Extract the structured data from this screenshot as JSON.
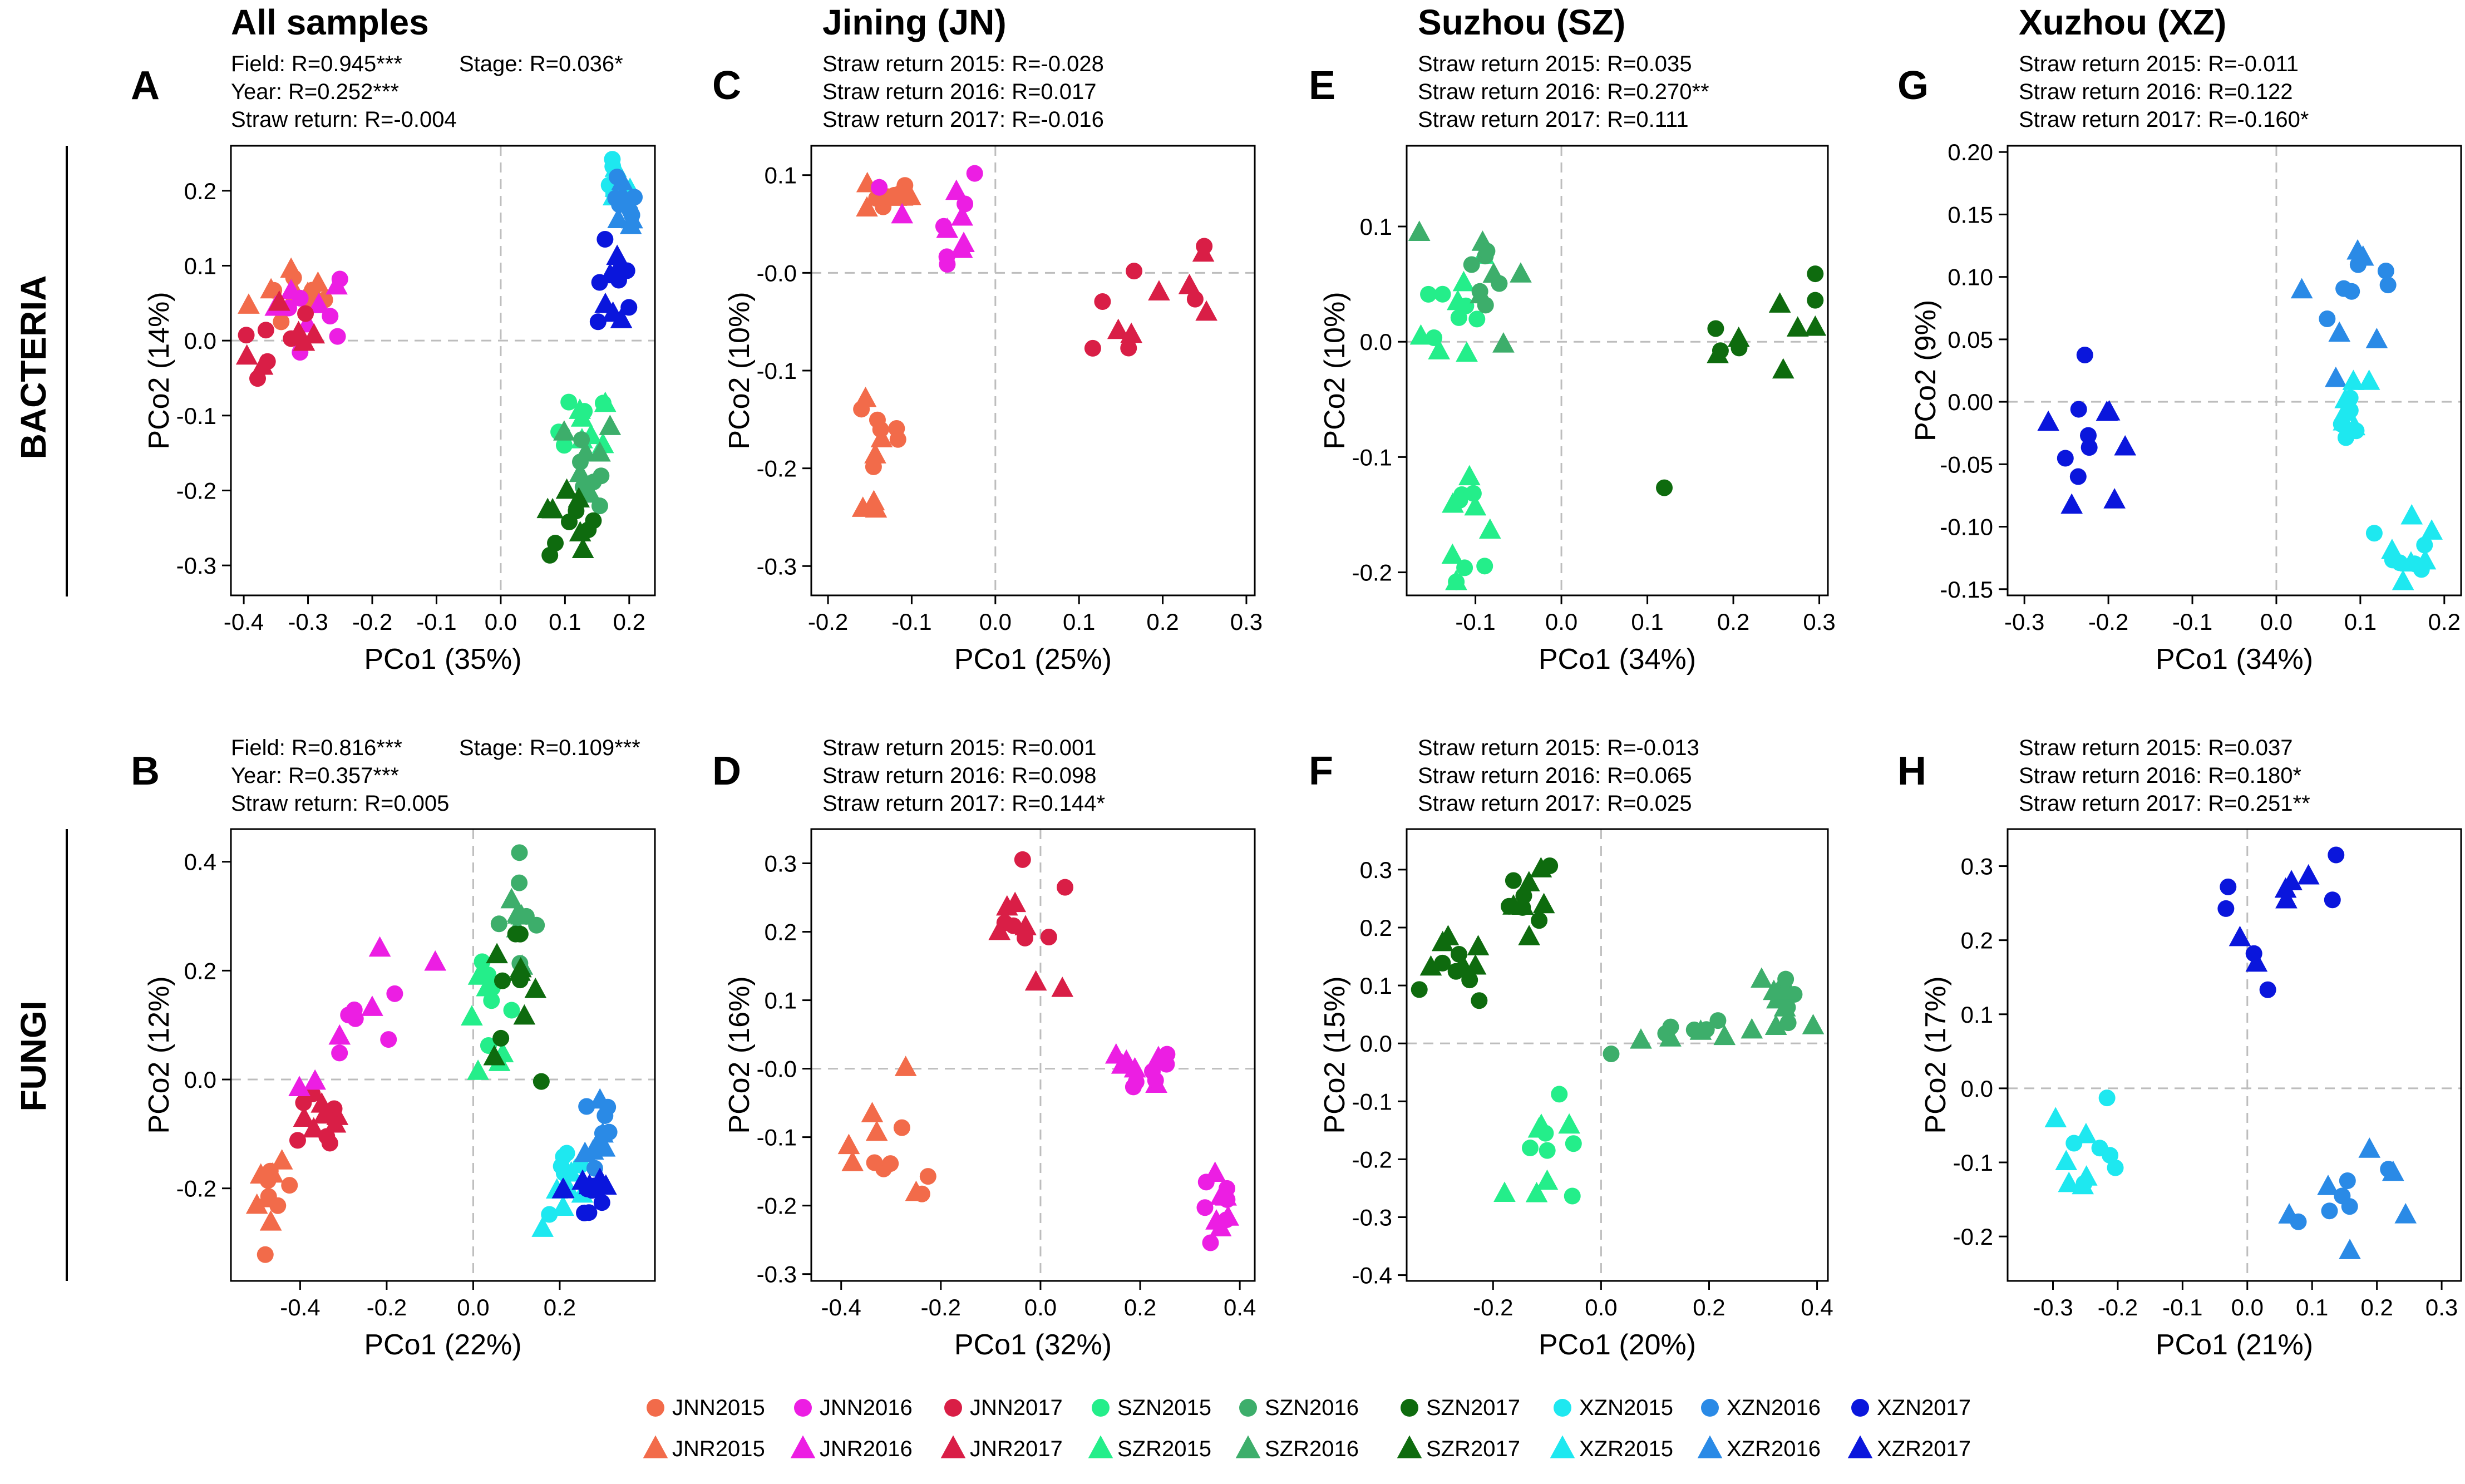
{
  "columns": [
    {
      "key": "all",
      "title": "All samples"
    },
    {
      "key": "jn",
      "title": "Jining (JN)"
    },
    {
      "key": "sz",
      "title": "Suzhou (SZ)"
    },
    {
      "key": "xz",
      "title": "Xuzhou (XZ)"
    }
  ],
  "rows": [
    {
      "key": "bacteria",
      "label": "BACTERIA"
    },
    {
      "key": "fungi",
      "label": "FUNGI"
    }
  ],
  "colors": {
    "JN2015": "#f26b4a",
    "JN2016": "#ec1ee3",
    "JN2017": "#d91e46",
    "SZ2015": "#24ee8a",
    "SZ2016": "#3dae6b",
    "SZ2017": "#0e6b0e",
    "XZ2015": "#1ee8f0",
    "XZ2016": "#2a8ae6",
    "XZ2017": "#0a16dc"
  },
  "legend": {
    "row1": [
      {
        "label": "JNN2015",
        "group": "JN2015",
        "shape": "circle"
      },
      {
        "label": "JNN2016",
        "group": "JN2016",
        "shape": "circle"
      },
      {
        "label": "JNN2017",
        "group": "JN2017",
        "shape": "circle"
      },
      {
        "label": "SZN2015",
        "group": "SZ2015",
        "shape": "circle"
      },
      {
        "label": "SZN2016",
        "group": "SZ2016",
        "shape": "circle"
      },
      {
        "label": "SZN2017",
        "group": "SZ2017",
        "shape": "circle"
      },
      {
        "label": "XZN2015",
        "group": "XZ2015",
        "shape": "circle"
      },
      {
        "label": "XZN2016",
        "group": "XZ2016",
        "shape": "circle"
      },
      {
        "label": "XZN2017",
        "group": "XZ2017",
        "shape": "circle"
      }
    ],
    "row2": [
      {
        "label": "JNR2015",
        "group": "JN2015",
        "shape": "triangle"
      },
      {
        "label": "JNR2016",
        "group": "JN2016",
        "shape": "triangle"
      },
      {
        "label": "JNR2017",
        "group": "JN2017",
        "shape": "triangle"
      },
      {
        "label": "SZR2015",
        "group": "SZ2015",
        "shape": "triangle"
      },
      {
        "label": "SZR2016",
        "group": "SZ2016",
        "shape": "triangle"
      },
      {
        "label": "SZR2017",
        "group": "SZ2017",
        "shape": "triangle"
      },
      {
        "label": "XZR2015",
        "group": "XZ2015",
        "shape": "triangle"
      },
      {
        "label": "XZR2016",
        "group": "XZ2016",
        "shape": "triangle"
      },
      {
        "label": "XZR2017",
        "group": "XZ2017",
        "shape": "triangle"
      }
    ]
  },
  "chart_data": [
    {
      "id": "A",
      "type": "scatter",
      "domain": "bacteria",
      "column": "all",
      "xlabel": "PCo1 (35%)",
      "ylabel": "PCo2 (14%)",
      "xlim": [
        -0.42,
        0.24
      ],
      "ylim": [
        -0.34,
        0.26
      ],
      "xticks": [
        -0.4,
        -0.3,
        -0.2,
        -0.1,
        0.0,
        0.1,
        0.2
      ],
      "xtick_labels": [
        "-0.4",
        "-0.3",
        "-0.2",
        "-0.1",
        "0.0",
        "0.1",
        "0.2"
      ],
      "yticks": [
        -0.3,
        -0.2,
        -0.1,
        0.0,
        0.1,
        0.2
      ],
      "ytick_labels": [
        "-0.3",
        "-0.2",
        "-0.1",
        "0.0",
        "0.1",
        "0.2"
      ],
      "stats": [
        "Field: R=0.945***",
        "Stage: R=0.036*",
        "Year: R=0.252***",
        "Straw return: R=-0.004"
      ],
      "clusters": [
        {
          "group": "JN2015",
          "cx": -0.31,
          "cy": 0.06,
          "sx": 0.04,
          "sy": 0.025,
          "rot": 0
        },
        {
          "group": "JN2016",
          "cx": -0.3,
          "cy": 0.05,
          "sx": 0.04,
          "sy": 0.025,
          "rot": 0
        },
        {
          "group": "JN2017",
          "cx": -0.33,
          "cy": -0.01,
          "sx": 0.04,
          "sy": 0.03,
          "rot": 0
        },
        {
          "group": "SZ2015",
          "cx": 0.13,
          "cy": -0.12,
          "sx": 0.02,
          "sy": 0.025,
          "rot": 0
        },
        {
          "group": "SZ2016",
          "cx": 0.14,
          "cy": -0.16,
          "sx": 0.02,
          "sy": 0.03,
          "rot": 0
        },
        {
          "group": "SZ2017",
          "cx": 0.1,
          "cy": -0.25,
          "sx": 0.025,
          "sy": 0.03,
          "rot": 0
        },
        {
          "group": "XZ2015",
          "cx": 0.18,
          "cy": 0.21,
          "sx": 0.01,
          "sy": 0.015,
          "rot": 0
        },
        {
          "group": "XZ2016",
          "cx": 0.19,
          "cy": 0.17,
          "sx": 0.012,
          "sy": 0.025,
          "rot": 0
        },
        {
          "group": "XZ2017",
          "cx": 0.18,
          "cy": 0.07,
          "sx": 0.015,
          "sy": 0.03,
          "rot": 0
        }
      ]
    },
    {
      "id": "C",
      "type": "scatter",
      "domain": "bacteria",
      "column": "jn",
      "xlabel": "PCo1 (25%)",
      "ylabel": "PCo2 (10%)",
      "xlim": [
        -0.22,
        0.31
      ],
      "ylim": [
        -0.33,
        0.13
      ],
      "xticks": [
        -0.2,
        -0.1,
        0.0,
        0.1,
        0.2,
        0.3
      ],
      "xtick_labels": [
        "-0.2",
        "-0.1",
        "0.0",
        "0.1",
        "0.2",
        "0.3"
      ],
      "yticks": [
        -0.3,
        -0.2,
        -0.1,
        0.0,
        0.1
      ],
      "ytick_labels": [
        "-0.3",
        "-0.2",
        "-0.1",
        "-0.0",
        "0.1"
      ],
      "stats": [
        "Straw return 2015: R=-0.028",
        "Straw return 2016: R=0.017",
        "Straw return 2017: R=-0.016"
      ],
      "clusters": [
        {
          "group": "JN2015",
          "cx": -0.13,
          "cy": 0.08,
          "sx": 0.015,
          "sy": 0.01,
          "rot": 0
        },
        {
          "group": "JN2016",
          "cx": -0.07,
          "cy": 0.05,
          "sx": 0.03,
          "sy": 0.035,
          "rot": 0
        },
        {
          "group": "JN2017",
          "cx": 0.2,
          "cy": -0.02,
          "sx": 0.035,
          "sy": 0.06,
          "rot": -1.0
        },
        {
          "group": "JN2015",
          "cx": -0.14,
          "cy": -0.18,
          "sx": 0.02,
          "sy": 0.05,
          "rot": 0
        }
      ]
    },
    {
      "id": "E",
      "type": "scatter",
      "domain": "bacteria",
      "column": "sz",
      "xlabel": "PCo1 (34%)",
      "ylabel": "PCo2 (10%)",
      "xlim": [
        -0.18,
        0.31
      ],
      "ylim": [
        -0.22,
        0.17
      ],
      "xticks": [
        -0.1,
        0.0,
        0.1,
        0.2,
        0.3
      ],
      "xtick_labels": [
        "-0.1",
        "0.0",
        "0.1",
        "0.2",
        "0.3"
      ],
      "yticks": [
        -0.2,
        -0.1,
        0.0,
        0.1
      ],
      "ytick_labels": [
        "-0.2",
        "-0.1",
        "0.0",
        "0.1"
      ],
      "stats": [
        "Straw return 2015: R=0.035",
        "Straw return 2016: R=0.270**",
        "Straw return 2017: R=0.111"
      ],
      "clusters": [
        {
          "group": "SZ2015",
          "cx": -0.12,
          "cy": 0.03,
          "sx": 0.02,
          "sy": 0.03,
          "rot": 0
        },
        {
          "group": "SZ2016",
          "cx": -0.09,
          "cy": 0.06,
          "sx": 0.025,
          "sy": 0.03,
          "rot": 0
        },
        {
          "group": "SZ2015",
          "cx": -0.11,
          "cy": -0.15,
          "sx": 0.012,
          "sy": 0.035,
          "rot": 0
        },
        {
          "group": "SZ2017",
          "cx": 0.22,
          "cy": 0.0,
          "sx": 0.03,
          "sy": 0.07,
          "rot": -1.2
        }
      ]
    },
    {
      "id": "G",
      "type": "scatter",
      "domain": "bacteria",
      "column": "xz",
      "xlabel": "PCo1 (34%)",
      "ylabel": "PCo2 (9%)",
      "xlim": [
        -0.32,
        0.22
      ],
      "ylim": [
        -0.155,
        0.205
      ],
      "xticks": [
        -0.3,
        -0.2,
        -0.1,
        0.0,
        0.1,
        0.2
      ],
      "xtick_labels": [
        "-0.3",
        "-0.2",
        "-0.1",
        "0.0",
        "0.1",
        "0.2"
      ],
      "yticks": [
        -0.15,
        -0.1,
        -0.05,
        0.0,
        0.05,
        0.1,
        0.15,
        0.2
      ],
      "ytick_labels": [
        "-0.15",
        "-0.10",
        "-0.05",
        "0.00",
        "0.05",
        "0.10",
        "0.15",
        "0.20"
      ],
      "stats": [
        "Straw return 2015: R=-0.011",
        "Straw return 2016: R=0.122",
        "Straw return 2017: R=-0.160*"
      ],
      "clusters": [
        {
          "group": "XZ2017",
          "cx": -0.22,
          "cy": -0.03,
          "sx": 0.03,
          "sy": 0.035,
          "rot": -0.8
        },
        {
          "group": "XZ2016",
          "cx": 0.08,
          "cy": 0.09,
          "sx": 0.02,
          "sy": 0.04,
          "rot": -0.6
        },
        {
          "group": "XZ2015",
          "cx": 0.09,
          "cy": -0.01,
          "sx": 0.01,
          "sy": 0.015,
          "rot": 0
        },
        {
          "group": "XZ2015",
          "cx": 0.16,
          "cy": -0.11,
          "sx": 0.015,
          "sy": 0.02,
          "rot": 0
        }
      ]
    },
    {
      "id": "B",
      "type": "scatter",
      "domain": "fungi",
      "column": "all",
      "xlabel": "PCo1 (22%)",
      "ylabel": "PCo2 (12%)",
      "xlim": [
        -0.56,
        0.42
      ],
      "ylim": [
        -0.37,
        0.46
      ],
      "xticks": [
        -0.4,
        -0.2,
        0.0,
        0.2
      ],
      "xtick_labels": [
        "-0.4",
        "-0.2",
        "0.0",
        "0.2"
      ],
      "yticks": [
        -0.2,
        0.0,
        0.2,
        0.4
      ],
      "ytick_labels": [
        "-0.2",
        "0.0",
        "0.2",
        "0.4"
      ],
      "stats": [
        "Field: R=0.816***",
        "Stage: R=0.109***",
        "Year: R=0.357***",
        "Straw return: R=0.005"
      ],
      "clusters": [
        {
          "group": "JN2015",
          "cx": -0.46,
          "cy": -0.22,
          "sx": 0.02,
          "sy": 0.03,
          "rot": 0
        },
        {
          "group": "JN2017",
          "cx": -0.36,
          "cy": -0.07,
          "sx": 0.04,
          "sy": 0.05,
          "rot": -0.8
        },
        {
          "group": "JN2016",
          "cx": -0.24,
          "cy": 0.12,
          "sx": 0.04,
          "sy": 0.08,
          "rot": -0.8
        },
        {
          "group": "SZ2015",
          "cx": 0.04,
          "cy": 0.12,
          "sx": 0.03,
          "sy": 0.05,
          "rot": 0
        },
        {
          "group": "SZ2016",
          "cx": 0.1,
          "cy": 0.3,
          "sx": 0.025,
          "sy": 0.05,
          "rot": 0
        },
        {
          "group": "SZ2017",
          "cx": 0.09,
          "cy": 0.15,
          "sx": 0.03,
          "sy": 0.06,
          "rot": 0
        },
        {
          "group": "XZ2015",
          "cx": 0.22,
          "cy": -0.2,
          "sx": 0.03,
          "sy": 0.04,
          "rot": 0
        },
        {
          "group": "XZ2016",
          "cx": 0.29,
          "cy": -0.1,
          "sx": 0.02,
          "sy": 0.06,
          "rot": 0
        },
        {
          "group": "XZ2017",
          "cx": 0.27,
          "cy": -0.2,
          "sx": 0.03,
          "sy": 0.04,
          "rot": 0
        }
      ]
    },
    {
      "id": "D",
      "type": "scatter",
      "domain": "fungi",
      "column": "jn",
      "xlabel": "PCo1 (32%)",
      "ylabel": "PCo2 (16%)",
      "xlim": [
        -0.46,
        0.43
      ],
      "ylim": [
        -0.31,
        0.35
      ],
      "xticks": [
        -0.4,
        -0.2,
        0.0,
        0.2,
        0.4
      ],
      "xtick_labels": [
        "-0.4",
        "-0.2",
        "0.0",
        "0.2",
        "0.4"
      ],
      "yticks": [
        -0.3,
        -0.2,
        -0.1,
        0.0,
        0.1,
        0.2,
        0.3
      ],
      "ytick_labels": [
        "-0.3",
        "-0.2",
        "-0.1",
        "-0.0",
        "0.1",
        "0.2",
        "0.3"
      ],
      "stats": [
        "Straw return 2015: R=0.001",
        "Straw return 2016: R=0.098",
        "Straw return 2017: R=0.144*"
      ],
      "clusters": [
        {
          "group": "JN2015",
          "cx": -0.3,
          "cy": -0.13,
          "sx": 0.07,
          "sy": 0.04,
          "rot": -0.45
        },
        {
          "group": "JN2017",
          "cx": -0.02,
          "cy": 0.2,
          "sx": 0.07,
          "sy": 0.05,
          "rot": 0
        },
        {
          "group": "JN2016",
          "cx": 0.19,
          "cy": -0.01,
          "sx": 0.04,
          "sy": 0.02,
          "rot": 0
        },
        {
          "group": "JN2016",
          "cx": 0.36,
          "cy": -0.21,
          "sx": 0.02,
          "sy": 0.03,
          "rot": 0
        }
      ]
    },
    {
      "id": "F",
      "type": "scatter",
      "domain": "fungi",
      "column": "sz",
      "xlabel": "PCo1 (20%)",
      "ylabel": "PCo2 (15%)",
      "xlim": [
        -0.36,
        0.42
      ],
      "ylim": [
        -0.41,
        0.37
      ],
      "xticks": [
        -0.2,
        0.0,
        0.2,
        0.4
      ],
      "xtick_labels": [
        "-0.2",
        "0.0",
        "0.2",
        "0.4"
      ],
      "yticks": [
        -0.4,
        -0.3,
        -0.2,
        -0.1,
        0.0,
        0.1,
        0.2,
        0.3
      ],
      "ytick_labels": [
        "-0.4",
        "-0.3",
        "-0.2",
        "-0.1",
        "0.0",
        "0.1",
        "0.2",
        "0.3"
      ],
      "stats": [
        "Straw return 2015: R=-0.013",
        "Straw return 2016: R=0.065",
        "Straw return 2017: R=0.025"
      ],
      "clusters": [
        {
          "group": "SZ2017",
          "cx": -0.27,
          "cy": 0.12,
          "sx": 0.03,
          "sy": 0.03,
          "rot": 0
        },
        {
          "group": "SZ2017",
          "cx": -0.14,
          "cy": 0.25,
          "sx": 0.03,
          "sy": 0.04,
          "rot": 0
        },
        {
          "group": "SZ2015",
          "cx": -0.09,
          "cy": -0.21,
          "sx": 0.04,
          "sy": 0.05,
          "rot": 0
        },
        {
          "group": "SZ2016",
          "cx": 0.2,
          "cy": 0.02,
          "sx": 0.08,
          "sy": 0.015,
          "rot": 0
        },
        {
          "group": "SZ2016",
          "cx": 0.34,
          "cy": 0.08,
          "sx": 0.015,
          "sy": 0.03,
          "rot": 0
        }
      ]
    },
    {
      "id": "H",
      "type": "scatter",
      "domain": "fungi",
      "column": "xz",
      "xlabel": "PCo1 (21%)",
      "ylabel": "PCo2 (17%)",
      "xlim": [
        -0.37,
        0.33
      ],
      "ylim": [
        -0.26,
        0.35
      ],
      "xticks": [
        -0.3,
        -0.2,
        -0.1,
        0.0,
        0.1,
        0.2,
        0.3
      ],
      "xtick_labels": [
        "-0.3",
        "-0.2",
        "-0.1",
        "0.0",
        "0.1",
        "0.2",
        "0.3"
      ],
      "yticks": [
        -0.2,
        -0.1,
        0.0,
        0.1,
        0.2,
        0.3
      ],
      "ytick_labels": [
        "-0.2",
        "-0.1",
        "0.0",
        "0.1",
        "0.2",
        "0.3"
      ],
      "stats": [
        "Straw return 2015: R=0.037",
        "Straw return 2016: R=0.180*",
        "Straw return 2017: R=0.251**"
      ],
      "clusters": [
        {
          "group": "XZ2015",
          "cx": -0.25,
          "cy": -0.08,
          "sx": 0.03,
          "sy": 0.035,
          "rot": 0
        },
        {
          "group": "XZ2017",
          "cx": 0.05,
          "cy": 0.23,
          "sx": 0.04,
          "sy": 0.05,
          "rot": -0.6
        },
        {
          "group": "XZ2016",
          "cx": 0.18,
          "cy": -0.15,
          "sx": 0.05,
          "sy": 0.04,
          "rot": -0.6
        }
      ]
    }
  ]
}
